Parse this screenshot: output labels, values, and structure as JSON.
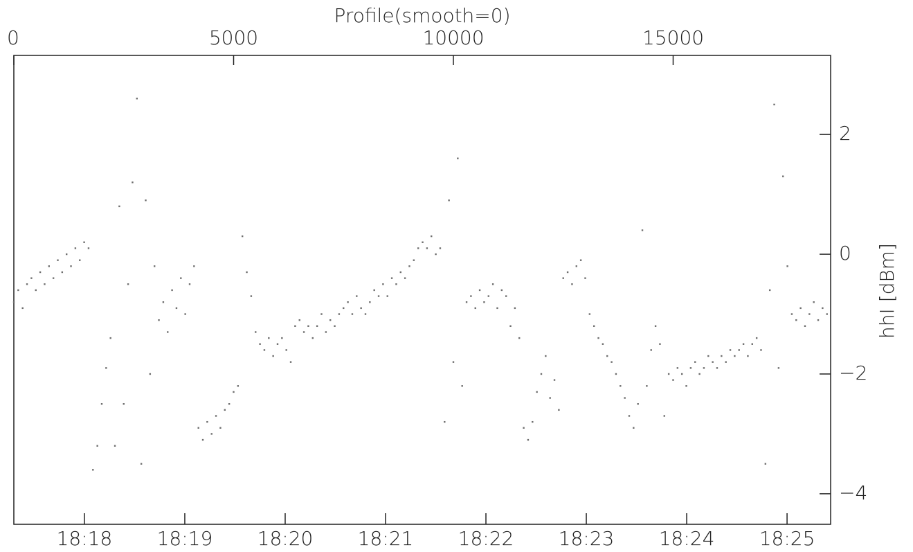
{
  "chart_data": {
    "type": "scatter",
    "title": "Profile(smooth=0)",
    "ylabel": "hhI [dBm]",
    "color": "#6e6e6e",
    "xlim": [
      0,
      18583
    ],
    "xticks": [
      0,
      5000,
      10000,
      15000
    ],
    "x2lim": [
      1097.297,
      1105.434
    ],
    "x2ticks": [
      {
        "value": 1098,
        "label": "18:18"
      },
      {
        "value": 1099,
        "label": "18:19"
      },
      {
        "value": 1100,
        "label": "18:20"
      },
      {
        "value": 1101,
        "label": "18:21"
      },
      {
        "value": 1102,
        "label": "18:22"
      },
      {
        "value": 1103,
        "label": "18:23"
      },
      {
        "value": 1104,
        "label": "18:24"
      },
      {
        "value": 1105,
        "label": "18:25"
      }
    ],
    "ylim": [
      -4.51,
      3.32
    ],
    "yticks": [
      {
        "value": -4,
        "label": "−4"
      },
      {
        "value": -2,
        "label": "−2"
      },
      0,
      2
    ],
    "x": [
      0,
      100,
      200,
      300,
      400,
      500,
      600,
      700,
      800,
      900,
      1000,
      1100,
      1200,
      1300,
      1400,
      1500,
      1600,
      1700,
      1800,
      1900,
      2000,
      2100,
      2200,
      2300,
      2400,
      2500,
      2600,
      2700,
      2800,
      2900,
      3000,
      3100,
      3200,
      3300,
      3400,
      3500,
      3600,
      3700,
      3800,
      3900,
      4000,
      4100,
      4200,
      4300,
      4400,
      4500,
      4600,
      4700,
      4800,
      4900,
      5000,
      5100,
      5200,
      5300,
      5400,
      5500,
      5600,
      5700,
      5800,
      5900,
      6000,
      6100,
      6200,
      6300,
      6400,
      6500,
      6600,
      6700,
      6800,
      6900,
      7000,
      7100,
      7200,
      7300,
      7400,
      7500,
      7600,
      7700,
      7800,
      7900,
      8000,
      8100,
      8200,
      8300,
      8400,
      8500,
      8600,
      8700,
      8800,
      8900,
      9000,
      9100,
      9200,
      9300,
      9400,
      9500,
      9600,
      9700,
      9800,
      9900,
      10000,
      10100,
      10200,
      10300,
      10400,
      10500,
      10600,
      10700,
      10800,
      10900,
      11000,
      11100,
      11200,
      11300,
      11400,
      11500,
      11600,
      11700,
      11800,
      11900,
      12000,
      12100,
      12200,
      12300,
      12400,
      12500,
      12600,
      12700,
      12800,
      12900,
      13000,
      13100,
      13200,
      13300,
      13400,
      13500,
      13600,
      13700,
      13800,
      13900,
      14000,
      14100,
      14200,
      14300,
      14400,
      14500,
      14600,
      14700,
      14800,
      14900,
      15000,
      15100,
      15200,
      15300,
      15400,
      15500,
      15600,
      15700,
      15800,
      15900,
      16000,
      16100,
      16200,
      16300,
      16400,
      16500,
      16600,
      16700,
      16800,
      16900,
      17000,
      17100,
      17200,
      17300,
      17400,
      17500,
      17600,
      17700,
      17800,
      17900,
      18000,
      18100,
      18200,
      18300,
      18400,
      18500
    ],
    "y": [
      -0.8,
      -0.6,
      -0.9,
      -0.5,
      -0.4,
      -0.6,
      -0.3,
      -0.5,
      -0.2,
      -0.4,
      -0.1,
      -0.3,
      0,
      -0.2,
      0.1,
      -0.1,
      0.2,
      0.1,
      -3.6,
      -3.2,
      -2.5,
      -1.9,
      -1.4,
      -3.2,
      0.8,
      -2.5,
      -0.5,
      1.2,
      2.6,
      -3.5,
      0.9,
      -2.0,
      -0.2,
      -1.1,
      -0.8,
      -1.3,
      -0.6,
      -0.9,
      -0.4,
      -1.0,
      -0.5,
      -0.2,
      -2.9,
      -3.1,
      -2.8,
      -3.0,
      -2.7,
      -2.9,
      -2.6,
      -2.5,
      -2.3,
      -2.2,
      0.3,
      -0.3,
      -0.7,
      -1.3,
      -1.5,
      -1.6,
      -1.4,
      -1.7,
      -1.5,
      -1.4,
      -1.6,
      -1.8,
      -1.2,
      -1.1,
      -1.3,
      -1.2,
      -1.4,
      -1.2,
      -1.0,
      -1.3,
      -1.1,
      -1.2,
      -1.0,
      -0.9,
      -0.8,
      -1.0,
      -0.7,
      -0.9,
      -1.0,
      -0.8,
      -0.6,
      -0.7,
      -0.5,
      -0.7,
      -0.4,
      -0.5,
      -0.3,
      -0.4,
      -0.2,
      -0.1,
      0.1,
      0.2,
      0.1,
      0.3,
      0.0,
      0.1,
      -2.8,
      0.9,
      -1.8,
      1.6,
      -2.2,
      -0.8,
      -0.7,
      -0.9,
      -0.6,
      -0.8,
      -0.7,
      -0.5,
      -0.9,
      -0.6,
      -0.7,
      -1.2,
      -0.9,
      -1.4,
      -2.9,
      -3.1,
      -2.8,
      -2.3,
      -2.0,
      -1.7,
      -2.4,
      -2.1,
      -2.6,
      -0.4,
      -0.3,
      -0.5,
      -0.2,
      -0.1,
      -0.4,
      -1.0,
      -1.2,
      -1.4,
      -1.5,
      -1.7,
      -1.8,
      -2.0,
      -2.2,
      -2.4,
      -2.7,
      -2.9,
      -2.5,
      0.4,
      -2.2,
      -1.6,
      -1.2,
      -1.5,
      -2.7,
      -2.0,
      -2.1,
      -1.9,
      -2.0,
      -2.2,
      -1.9,
      -1.8,
      -2.0,
      -1.9,
      -1.7,
      -1.8,
      -1.9,
      -1.7,
      -1.8,
      -1.6,
      -1.7,
      -1.6,
      -1.5,
      -1.7,
      -1.5,
      -1.4,
      -1.6,
      -3.5,
      -0.6,
      2.5,
      -1.9,
      1.3,
      -0.2,
      -1.0,
      -1.1,
      -0.9,
      -1.2,
      -1.0,
      -0.8,
      -1.1,
      -0.9,
      -1.0
    ]
  }
}
